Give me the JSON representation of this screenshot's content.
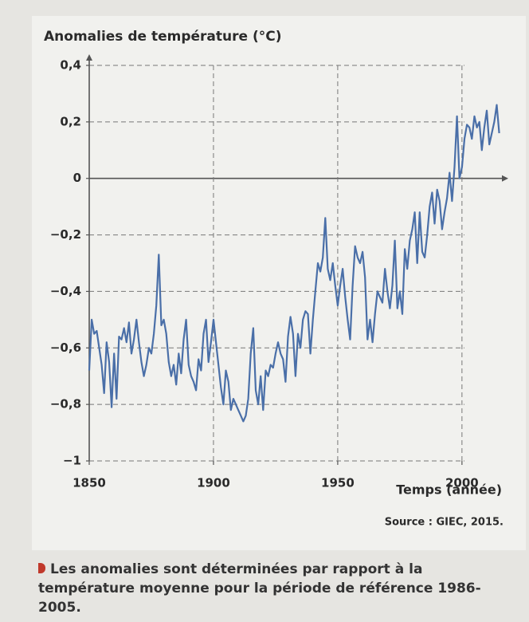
{
  "chart_data": {
    "type": "line",
    "title": "Anomalies de température (°C)",
    "x_label": "Temps (année)",
    "source": "Source : GIEC, 2015.",
    "caption": "Les anomalies sont déterminées par rapport à la température moyenne pour la période de référence 1986-2005.",
    "xlim": [
      1850,
      2018
    ],
    "ylim": [
      -1,
      0.4
    ],
    "xticks": [
      1850,
      1900,
      1950,
      2000
    ],
    "yticks": [
      {
        "value": 0.4,
        "label": "0,4"
      },
      {
        "value": 0.2,
        "label": "0,2"
      },
      0,
      {
        "value": -0.2,
        "label": "−0,2"
      },
      {
        "value": -0.4,
        "label": "−0,4"
      },
      {
        "value": -0.6,
        "label": "−0,6"
      },
      {
        "value": -0.8,
        "label": "−0,8"
      },
      {
        "value": -1,
        "label": "−1"
      }
    ],
    "grid": true,
    "color": "#4a6fa8",
    "x": [
      1850,
      1851,
      1852,
      1853,
      1854,
      1855,
      1856,
      1857,
      1858,
      1859,
      1860,
      1861,
      1862,
      1863,
      1864,
      1865,
      1866,
      1867,
      1868,
      1869,
      1870,
      1871,
      1872,
      1873,
      1874,
      1875,
      1876,
      1877,
      1878,
      1879,
      1880,
      1881,
      1882,
      1883,
      1884,
      1885,
      1886,
      1887,
      1888,
      1889,
      1890,
      1891,
      1892,
      1893,
      1894,
      1895,
      1896,
      1897,
      1898,
      1899,
      1900,
      1901,
      1902,
      1903,
      1904,
      1905,
      1906,
      1907,
      1908,
      1909,
      1910,
      1911,
      1912,
      1913,
      1914,
      1915,
      1916,
      1917,
      1918,
      1919,
      1920,
      1921,
      1922,
      1923,
      1924,
      1925,
      1926,
      1927,
      1928,
      1929,
      1930,
      1931,
      1932,
      1933,
      1934,
      1935,
      1936,
      1937,
      1938,
      1939,
      1940,
      1941,
      1942,
      1943,
      1944,
      1945,
      1946,
      1947,
      1948,
      1949,
      1950,
      1951,
      1952,
      1953,
      1954,
      1955,
      1956,
      1957,
      1958,
      1959,
      1960,
      1961,
      1962,
      1963,
      1964,
      1965,
      1966,
      1967,
      1968,
      1969,
      1970,
      1971,
      1972,
      1973,
      1974,
      1975,
      1976,
      1977,
      1978,
      1979,
      1980,
      1981,
      1982,
      1983,
      1984,
      1985,
      1986,
      1987,
      1988,
      1989,
      1990,
      1991,
      1992,
      1993,
      1994,
      1995,
      1996,
      1997,
      1998,
      1999,
      2000,
      2001,
      2002,
      2003,
      2004,
      2005,
      2006,
      2007,
      2008,
      2009,
      2010,
      2011,
      2012,
      2013,
      2014,
      2015
    ],
    "values": [
      -0.68,
      -0.5,
      -0.55,
      -0.54,
      -0.6,
      -0.66,
      -0.76,
      -0.58,
      -0.65,
      -0.81,
      -0.62,
      -0.78,
      -0.56,
      -0.57,
      -0.53,
      -0.58,
      -0.51,
      -0.62,
      -0.57,
      -0.5,
      -0.58,
      -0.65,
      -0.7,
      -0.66,
      -0.6,
      -0.62,
      -0.55,
      -0.45,
      -0.27,
      -0.52,
      -0.5,
      -0.55,
      -0.65,
      -0.7,
      -0.66,
      -0.73,
      -0.62,
      -0.69,
      -0.57,
      -0.5,
      -0.66,
      -0.7,
      -0.72,
      -0.75,
      -0.64,
      -0.68,
      -0.55,
      -0.5,
      -0.65,
      -0.58,
      -0.5,
      -0.58,
      -0.66,
      -0.74,
      -0.8,
      -0.68,
      -0.72,
      -0.82,
      -0.78,
      -0.8,
      -0.82,
      -0.84,
      -0.86,
      -0.84,
      -0.78,
      -0.62,
      -0.53,
      -0.75,
      -0.8,
      -0.7,
      -0.82,
      -0.68,
      -0.7,
      -0.66,
      -0.67,
      -0.62,
      -0.58,
      -0.62,
      -0.64,
      -0.72,
      -0.56,
      -0.49,
      -0.55,
      -0.7,
      -0.55,
      -0.6,
      -0.5,
      -0.47,
      -0.48,
      -0.62,
      -0.5,
      -0.4,
      -0.3,
      -0.33,
      -0.28,
      -0.14,
      -0.32,
      -0.36,
      -0.3,
      -0.38,
      -0.45,
      -0.38,
      -0.32,
      -0.42,
      -0.5,
      -0.57,
      -0.38,
      -0.24,
      -0.28,
      -0.3,
      -0.26,
      -0.35,
      -0.57,
      -0.5,
      -0.58,
      -0.48,
      -0.4,
      -0.42,
      -0.44,
      -0.32,
      -0.4,
      -0.46,
      -0.38,
      -0.22,
      -0.46,
      -0.4,
      -0.48,
      -0.25,
      -0.32,
      -0.22,
      -0.18,
      -0.12,
      -0.3,
      -0.12,
      -0.26,
      -0.28,
      -0.2,
      -0.1,
      -0.05,
      -0.16,
      -0.04,
      -0.08,
      -0.18,
      -0.12,
      -0.07,
      0.02,
      -0.08,
      0.04,
      0.22,
      0,
      0.04,
      0.14,
      0.19,
      0.18,
      0.14,
      0.22,
      0.18,
      0.2,
      0.1,
      0.18,
      0.24,
      0.12,
      0.16,
      0.2,
      0.26,
      0.16
    ]
  }
}
